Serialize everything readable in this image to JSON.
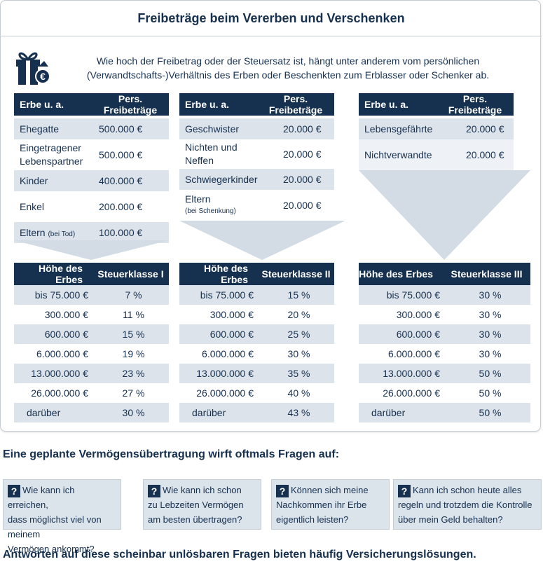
{
  "title": "Freibeträge beim Vererben und Verschenken",
  "intro_line1": "Wie hoch der Freibetrag oder der Steuersatz ist, hängt unter anderem vom persönlichen",
  "intro_line2": "(Verwandtschafts-)Verhältnis des Erben oder Beschenkten zum Erblasser oder Schenker ab.",
  "allowance_header": {
    "col1": "Erbe u. a.",
    "col2": "Pers. Freibeträge"
  },
  "allowances": [
    {
      "rows": [
        {
          "l1": "Ehegatte",
          "value": "500.000 €"
        },
        {
          "l1": "Eingetragener",
          "l2": "Lebenspartner",
          "value": "500.000 €"
        },
        {
          "l1": "Kinder",
          "value": "400.000 €"
        },
        {
          "l1": "Enkel",
          "value": "200.000 €"
        },
        {
          "l1": "Eltern",
          "note": "(bei Tod)",
          "value": "100.000 €"
        }
      ]
    },
    {
      "rows": [
        {
          "l1": "Geschwister",
          "value": "20.000 €"
        },
        {
          "l1": "Nichten und",
          "l2": "Neffen",
          "value": "20.000 €"
        },
        {
          "l1": "Schwiegerkinder",
          "value": "20.000 €"
        },
        {
          "l1": "Eltern",
          "sub": "(bei Schenkung)",
          "value": "20.000 €"
        }
      ]
    },
    {
      "rows": [
        {
          "l1": "Lebensgefährte",
          "value": "20.000 €"
        },
        {
          "l1": "Nichtverwandte",
          "value": "20.000 €"
        }
      ]
    }
  ],
  "rate_header": {
    "col1": "Höhe des Erbes"
  },
  "rate_classes": [
    "Steuerklasse I",
    "Steuerklasse II",
    "Steuerklasse III"
  ],
  "amounts": [
    "bis 75.000 €",
    "300.000 €",
    "600.000 €",
    "6.000.000 €",
    "13.000.000 €",
    "26.000.000 €",
    "darüber"
  ],
  "rates": [
    [
      "7 %",
      "11 %",
      "15 %",
      "19 %",
      "23 %",
      "27 %",
      "30 %"
    ],
    [
      "15 %",
      "20 %",
      "25 %",
      "30 %",
      "35 %",
      "40 %",
      "43 %"
    ],
    [
      "30 %",
      "30 %",
      "30 %",
      "30 %",
      "50 %",
      "50 %",
      "50 %"
    ]
  ],
  "questions_heading": "Eine geplante Vermögensübertragung wirft oftmals Fragen auf:",
  "questions": [
    [
      "Wie kann ich erreichen,",
      "dass möglichst viel von meinem",
      "Vermögen ankommt?"
    ],
    [
      "Wie kann ich schon",
      "zu Lebzeiten Vermögen",
      "am besten übertragen?"
    ],
    [
      "Können sich meine",
      "Nachkommen ihr Erbe",
      "eigentlich leisten?"
    ],
    [
      "Kann ich schon heute alles",
      "regeln und trotzdem die Kontrolle",
      "über mein Geld behalten?"
    ]
  ],
  "question_mark": "?",
  "footer": "Antworten auf diese scheinbar unlösbaren Fragen bieten häufig Versicherungslösungen.",
  "colors": {
    "navy": "#16304f",
    "light_row": "#dde3ea",
    "arrow": "#d3dbe4"
  },
  "icon": "gift-euro-icon"
}
